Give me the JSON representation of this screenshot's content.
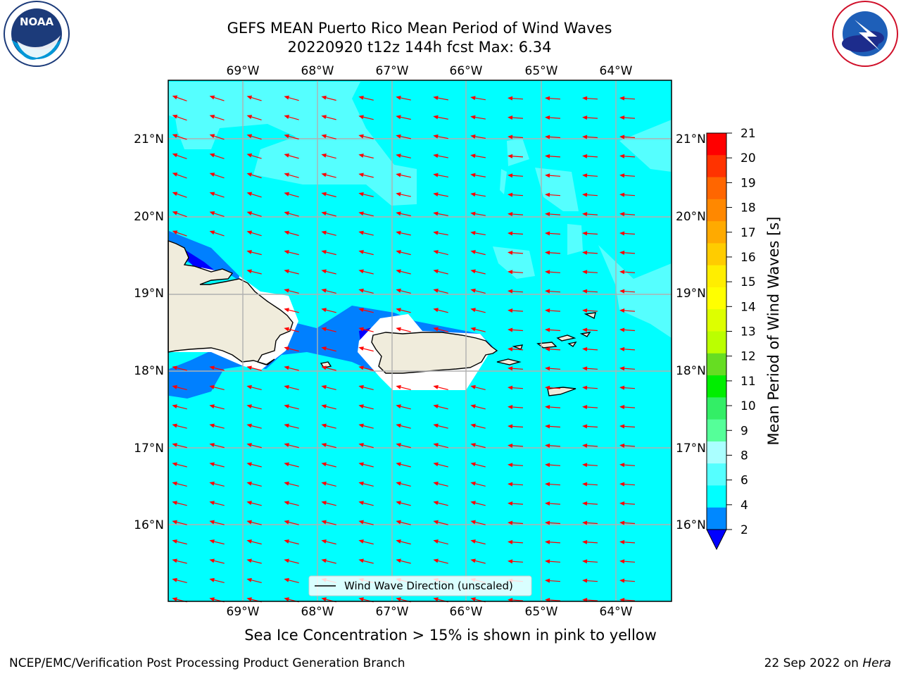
{
  "header": {
    "title_line1": "GEFS MEAN Puerto Rico Mean Period of Wind Waves",
    "title_line2": "20220920 t12z 144h fcst   Max: 6.34"
  },
  "logos": {
    "left": {
      "name": "noaa-logo",
      "text": "NOAA",
      "ring_text": "NATIONAL OCEANIC AND ATMOSPHERIC ADMINISTRATION · U.S. DEPARTMENT OF COMMERCE"
    },
    "right": {
      "name": "nws-logo",
      "ring_text": "NATIONAL WEATHER SERVICE"
    }
  },
  "map": {
    "lon_labels": [
      "69°W",
      "68°W",
      "67°W",
      "66°W",
      "65°W",
      "64°W"
    ],
    "lat_labels": [
      "21°N",
      "20°N",
      "19°N",
      "18°N",
      "17°N",
      "16°N"
    ],
    "legend_label": "Wind Wave Direction (unscaled)",
    "colors": {
      "sea": "#00ffff",
      "light_sea": "#55ffff",
      "shallow": "#0080ff",
      "deep": "#0000ff",
      "land": "#f0ecdc",
      "arrow": "#ff0000",
      "grid": "#b0b0b0"
    }
  },
  "colorbar": {
    "label": "Mean Period of Wind Waves [s]",
    "ticks": [
      "21",
      "20",
      "19",
      "18",
      "17",
      "16",
      "15",
      "14",
      "13",
      "12",
      "11",
      "10",
      "9",
      "8",
      "6",
      "4",
      "2"
    ],
    "colors": [
      "#ff0000",
      "#ff3300",
      "#ff6600",
      "#ff8800",
      "#ffaa00",
      "#ffcc00",
      "#ffee00",
      "#ffff00",
      "#ddff00",
      "#bbff00",
      "#66dd22",
      "#00ee00",
      "#33ee66",
      "#55ff99",
      "#aaffff",
      "#55ffff",
      "#00ffff",
      "#0088ff"
    ],
    "under_color": "#0000ff"
  },
  "footer": {
    "note": "Sea Ice Concentration > 15% is shown in pink to yellow",
    "left": "NCEP/EMC/Verification Post Processing Product Generation Branch",
    "right_date": "22 Sep 2022 on",
    "right_host": "Hera"
  }
}
